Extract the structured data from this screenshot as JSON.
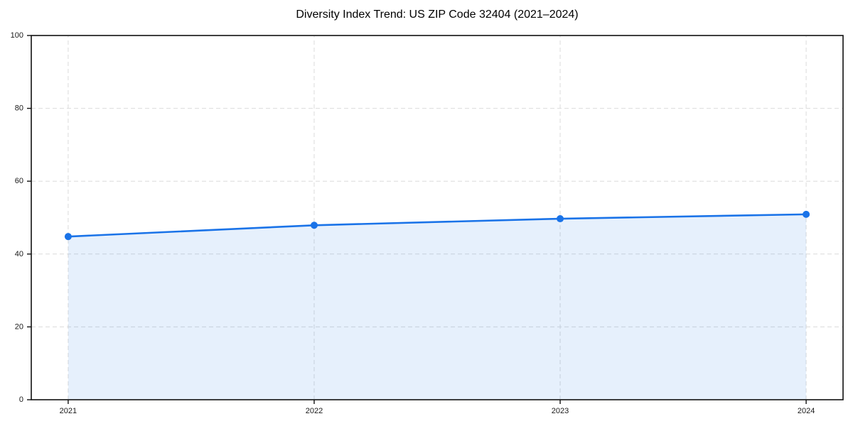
{
  "chart_data": {
    "type": "line",
    "title": "Diversity Index Trend: US ZIP Code 32404 (2021–2024)",
    "series": [
      {
        "name": "Diversity Index",
        "x": [
          2021,
          2022,
          2023,
          2024
        ],
        "values": [
          44.8,
          47.9,
          49.7,
          50.9
        ],
        "marker": "circle",
        "area_fill": true
      }
    ],
    "xlabel": "",
    "ylabel": "",
    "xtick_labels": [
      "2021",
      "2022",
      "2023",
      "2024"
    ],
    "xticks": [
      2021,
      2022,
      2023,
      2024
    ],
    "ytick_labels": [
      "0",
      "20",
      "40",
      "60",
      "80",
      "100"
    ],
    "yticks": [
      0,
      20,
      40,
      60,
      80,
      100
    ],
    "xlim": [
      2020.85,
      2024.15
    ],
    "ylim": [
      0,
      100
    ],
    "grid": true,
    "grid_style": "dashed",
    "legend_position": "none",
    "colors": {
      "line": "#1a73e8",
      "marker": "#1a73e8",
      "area": "rgba(26,115,232,0.11)",
      "grid": "#dcdcdc",
      "spine": "#111111",
      "tick": "#111111",
      "tick_label": "#1a1a1a",
      "title": "#000000",
      "background": "#ffffff"
    }
  }
}
